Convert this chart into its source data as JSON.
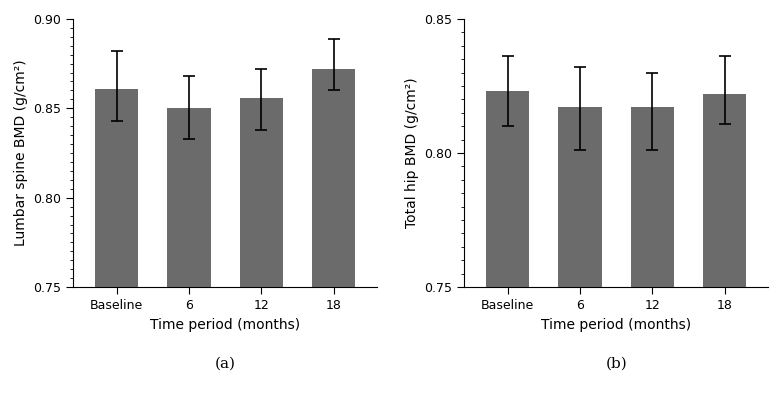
{
  "left": {
    "categories": [
      "Baseline",
      "6",
      "12",
      "18"
    ],
    "values": [
      0.861,
      0.85,
      0.856,
      0.872
    ],
    "errors_upper": [
      0.021,
      0.018,
      0.016,
      0.017
    ],
    "errors_lower": [
      0.018,
      0.017,
      0.018,
      0.012
    ],
    "ylabel": "Lumbar spine BMD (g/cm²)",
    "xlabel": "Time period (months)",
    "ylim": [
      0.75,
      0.9
    ],
    "yticks": [
      0.75,
      0.8,
      0.85,
      0.9
    ],
    "ytick_labels": [
      "0.75",
      "0.80",
      "0.85",
      "0.90"
    ],
    "minor_tick_interval": 0.005,
    "label": "(a)"
  },
  "right": {
    "categories": [
      "Baseline",
      "6",
      "12",
      "18"
    ],
    "values": [
      0.823,
      0.817,
      0.817,
      0.822
    ],
    "errors_upper": [
      0.013,
      0.015,
      0.013,
      0.014
    ],
    "errors_lower": [
      0.013,
      0.016,
      0.016,
      0.011
    ],
    "ylabel": "Total hip BMD (g/cm²)",
    "xlabel": "Time period (months)",
    "ylim": [
      0.75,
      0.85
    ],
    "yticks": [
      0.75,
      0.8,
      0.85
    ],
    "ytick_labels": [
      "0.75",
      "0.80",
      "0.85"
    ],
    "minor_tick_interval": 0.005,
    "label": "(b)"
  },
  "bar_color": "#6b6b6b",
  "bar_width": 0.6,
  "error_color": "black",
  "error_capsize": 4,
  "error_linewidth": 1.2,
  "background_color": "#ffffff",
  "tick_fontsize": 9,
  "label_fontsize": 10,
  "sublabel_fontsize": 11,
  "figsize": [
    7.82,
    4.04
  ],
  "dpi": 100
}
